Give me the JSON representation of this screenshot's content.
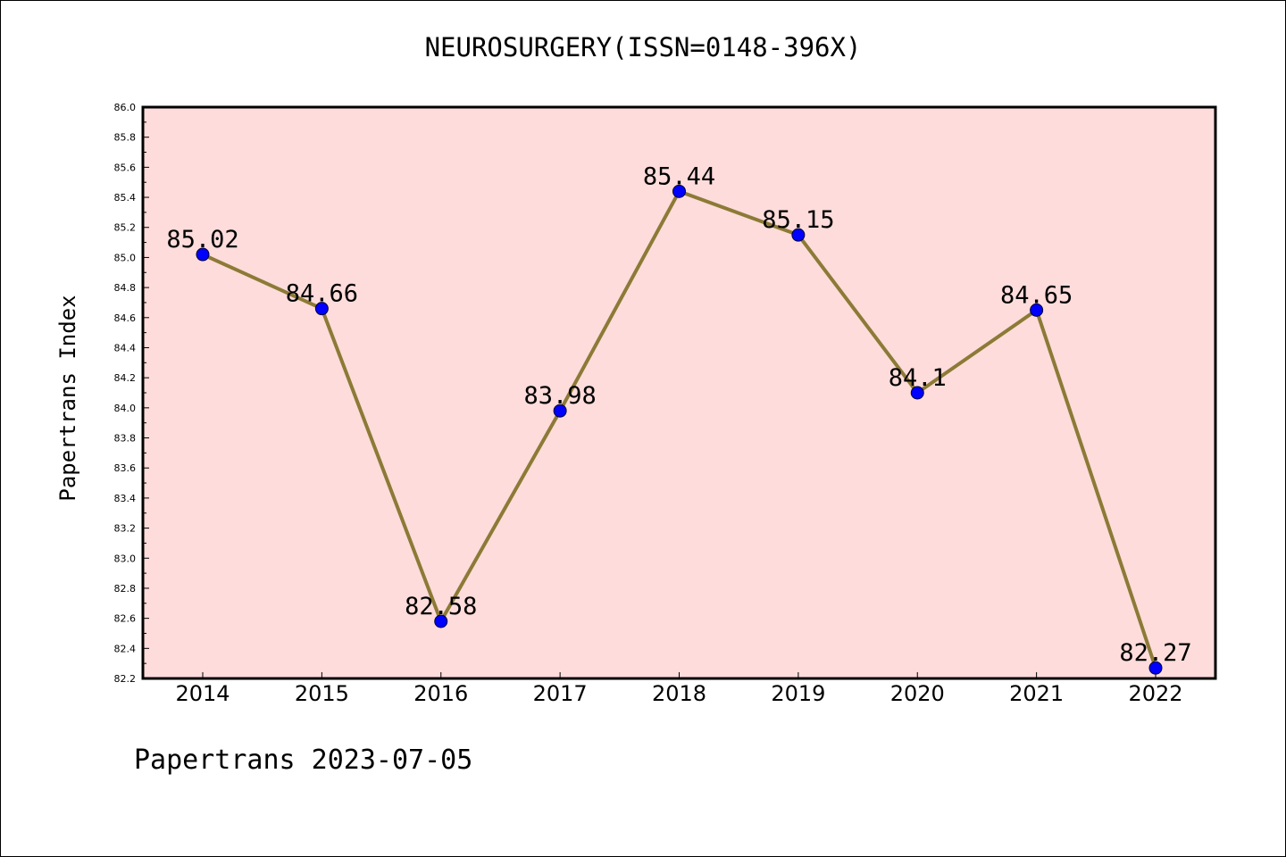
{
  "title": "NEUROSURGERY(ISSN=0148-396X)",
  "footer": "Papertrans 2023-07-05",
  "colors": {
    "plot_background": "#fddcdb",
    "line": "#8c7a36",
    "marker": "#0000ff",
    "axes": "#000000"
  },
  "chart_data": {
    "type": "line",
    "title": "NEUROSURGERY(ISSN=0148-396X)",
    "xlabel": "",
    "ylabel": "Papertrans Index",
    "categories": [
      "2014",
      "2015",
      "2016",
      "2017",
      "2018",
      "2019",
      "2020",
      "2021",
      "2022"
    ],
    "series": [
      {
        "values": [
          85.02,
          84.66,
          82.58,
          83.98,
          85.44,
          85.15,
          84.1,
          84.65,
          82.27
        ]
      }
    ],
    "data_labels": [
      "85.02",
      "84.66",
      "82.58",
      "83.98",
      "85.44",
      "85.15",
      "84.1",
      "84.65",
      "82.27"
    ],
    "ylim": [
      82.2,
      86.0
    ],
    "yticks": [
      "82.2",
      "82.4",
      "82.6",
      "82.8",
      "83.0",
      "83.2",
      "83.4",
      "83.6",
      "83.8",
      "84.0",
      "84.2",
      "84.4",
      "84.6",
      "84.8",
      "85.0",
      "85.2",
      "85.4",
      "85.6",
      "85.8",
      "86.0"
    ],
    "grid": false,
    "legend": "none"
  }
}
